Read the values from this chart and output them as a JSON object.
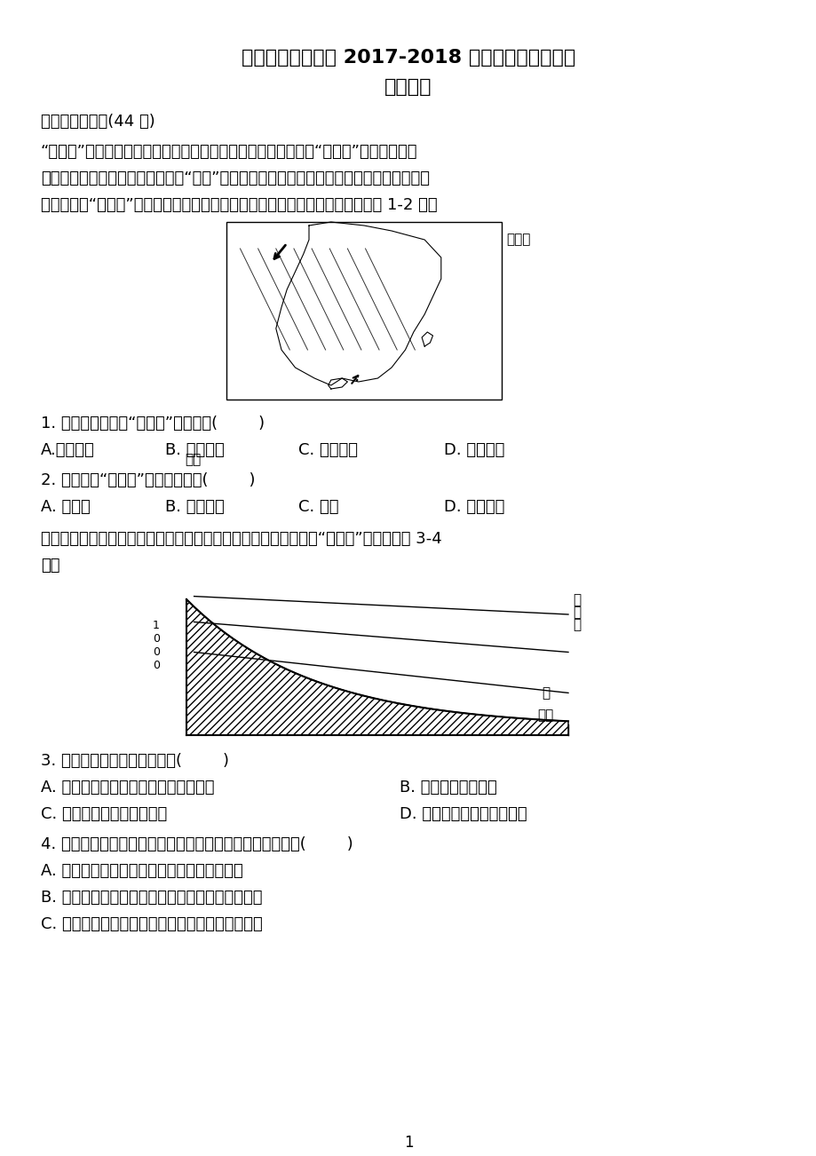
{
  "title1": "莆田第二十五中学 2017-2018 学年上学期月考试卷",
  "title2": "高三地理",
  "section1": "一、单项选择题(44 分)",
  "para1": "“回南天”通常指每年入春气温开始回暖而湿度开始回升的现象。“回南天”出现时，空气",
  "para2": "湿度接近饱和，墙壁甚至地面都会“冒水”，到处是湿漉漉的景象，空气似乎都能拧出水来。",
  "para3": "而浓雾则是“回南天”的最具特色的表象。下图为我国锋面雨带示意图，据此完成 1-2 题。",
  "q1": "1. 春季最容易出现“回南天”的区域是(        )",
  "q1a": "A.华南地区",
  "q1b": "B. 江淮地区",
  "q1c": "C. 长江流域",
  "q1d": "D. 华北地区",
  "q2": "2. 可能加剧“回南天”的天气系统是(        )",
  "q2a": "A. 强台风",
  "q2b": "B. 准静止锋",
  "q2c": "C. 冷锋",
  "q2d": "D. 高压系统",
  "para4": "下图是某一时刻山峰和山谷之间冷热不均形成的一种热力环流，叫“山谷风”。据此回答 3-4",
  "para4b": "题。",
  "q3": "3. 关于该图的说法，正确的是(        )",
  "q3a": "A. 山谷风的产生是由于海拔高度的差异",
  "q3b": "B. 此时表示的是夜晚",
  "q3c": "C. 此时的风从山谷吹向山顶",
  "q3d": "D. 此时的风从山顶吹向山谷",
  "q4": "4. 据实际调查，图中甲地的夜雨较多，其主要原因是该地区(        )",
  "q4a": "A. 夜晚的气温高于白天的气温，气流上升运动",
  "q4b": "B. 夜晚的气温比周围地区的气温低，气流下沉运动",
  "q4c": "C. 夜晚的气温比周围地区的气温高，气流上升运动",
  "page_num": "1",
  "bg_color": "#ffffff",
  "text_color": "#000000"
}
